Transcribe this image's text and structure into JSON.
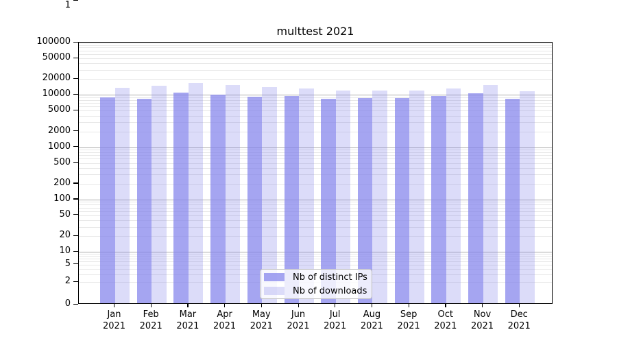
{
  "chart_data": {
    "type": "bar",
    "title": "multtest 2021",
    "categories": [
      "Jan 2021",
      "Feb 2021",
      "Mar 2021",
      "Apr 2021",
      "May 2021",
      "Jun 2021",
      "Jul 2021",
      "Aug 2021",
      "Sep 2021",
      "Oct 2021",
      "Nov 2021",
      "Dec 2021"
    ],
    "series": [
      {
        "name": "Nb of distinct IPs",
        "color": "rgba(130,130,235,0.72)",
        "values": [
          8300,
          7900,
          10400,
          9500,
          8800,
          8900,
          8000,
          8100,
          8100,
          8900,
          10000,
          8000
        ]
      },
      {
        "name": "Nb of downloads",
        "color": "rgba(130,130,235,0.28)",
        "values": [
          12900,
          13900,
          16100,
          14600,
          13200,
          12500,
          11500,
          11400,
          11500,
          12500,
          14300,
          11200
        ]
      }
    ],
    "y_ticks": [
      0,
      1,
      2,
      5,
      10,
      20,
      50,
      100,
      200,
      500,
      1000,
      2000,
      5000,
      10000,
      20000,
      50000,
      100000
    ],
    "y_scale": "symlog",
    "ylim": [
      0,
      100000
    ],
    "grid": true,
    "legend_position": "lower center"
  },
  "colors": {
    "bar_ips": "rgba(130,130,235,0.72)",
    "bar_downloads": "rgba(130,130,235,0.28)",
    "grid_major": "#ababab",
    "grid_minor": "#e7e7e7",
    "axis": "#000000",
    "text": "#000000"
  }
}
